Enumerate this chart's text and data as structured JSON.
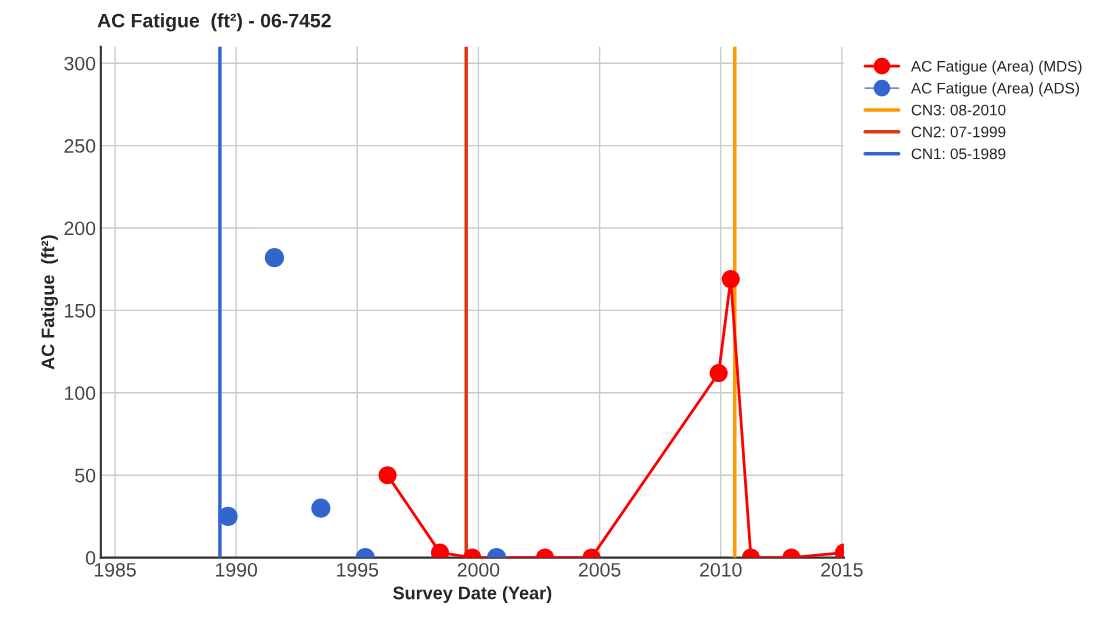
{
  "chart_data": {
    "type": "line",
    "title": "AC Fatigue  (ft²) - 06-7452",
    "xlabel": "Survey Date (Year)",
    "ylabel": "AC Fatigue  (ft²)",
    "series": [
      {
        "name": "AC Fatigue (Area) (MDS)",
        "color": "#ff0000",
        "x": [
          "1996-04",
          "1998-06",
          "1999-10",
          "2002-10",
          "2004-09",
          "2009-12",
          "2010-06",
          "2011-04",
          "2012-12",
          "2015-02"
        ],
        "values": [
          50,
          3,
          0,
          0,
          0,
          112,
          169,
          0,
          0,
          3
        ]
      },
      {
        "name": "AC Fatigue (Area) (ADS)",
        "type": "scatter",
        "color": "#3366cc",
        "x": [
          "1989-09",
          "1991-08",
          "1993-07",
          "1995-05",
          "2000-10"
        ],
        "values": [
          25,
          182,
          30,
          0,
          0
        ]
      },
      {
        "name": "CN3: 08-2010",
        "color": "#ff9900",
        "marker": "none",
        "x": [
          "2010-08",
          "2010-08"
        ],
        "values": [
          0,
          310
        ]
      },
      {
        "name": "CN2: 07-1999",
        "color": "#dc3912",
        "marker": "none",
        "x": [
          "1999-07",
          "1999-07"
        ],
        "values": [
          0,
          310
        ]
      },
      {
        "name": "CN1: 05-1989",
        "color": "#3366cc",
        "marker": "none",
        "x": [
          "1989-05",
          "1989-05"
        ],
        "values": [
          0,
          310
        ]
      }
    ],
    "xlim": [
      "1984-06",
      "2015-02"
    ],
    "xticks": [
      "1985",
      "1990",
      "1995",
      "2000",
      "2005",
      "2010",
      "2015"
    ],
    "ylim": [
      0,
      310
    ],
    "yticks": [
      0,
      50,
      100,
      150,
      200,
      250,
      300
    ],
    "grid": true,
    "legend": "right",
    "marker": "circle",
    "line_style": "solid"
  }
}
